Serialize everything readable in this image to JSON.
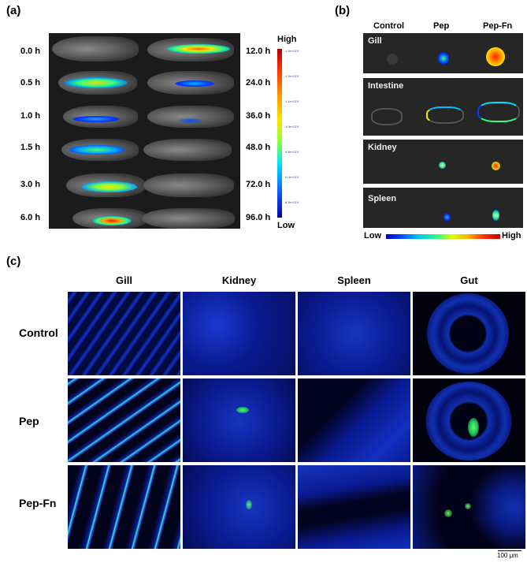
{
  "panel_a": {
    "label": "(a)",
    "times_left": [
      "0.0 h",
      "0.5 h",
      "1.0 h",
      "1.5 h",
      "3.0 h",
      "6.0 h"
    ],
    "times_right": [
      "12.0 h",
      "24.0 h",
      "36.0 h",
      "48.0 h",
      "72.0 h",
      "96.0 h"
    ],
    "colorbar": {
      "high": "High",
      "low": "Low",
      "ticks": [
        "1.3e+015",
        "1.2e+015",
        "1.1e+015",
        "1.0e+015",
        "9.8e+014",
        "9.0e+014",
        "8.3e+014"
      ]
    }
  },
  "panel_b": {
    "label": "(b)",
    "columns": [
      "Control",
      "Pep",
      "Pep-Fn"
    ],
    "organs": [
      "Gill",
      "Intestine",
      "Kidney",
      "Spleen"
    ],
    "scale_low": "Low",
    "scale_high": "High"
  },
  "panel_c": {
    "label": "(c)",
    "columns": [
      "Gill",
      "Kidney",
      "Spleen",
      "Gut"
    ],
    "rows": [
      "Control",
      "Pep",
      "Pep-Fn"
    ],
    "scale_bar": "100 μm"
  },
  "colors": {
    "background": "#ffffff",
    "image_bg": "#1b1b1b",
    "tissue_blue": "#1030d0",
    "signal_green": "#40ff60"
  }
}
